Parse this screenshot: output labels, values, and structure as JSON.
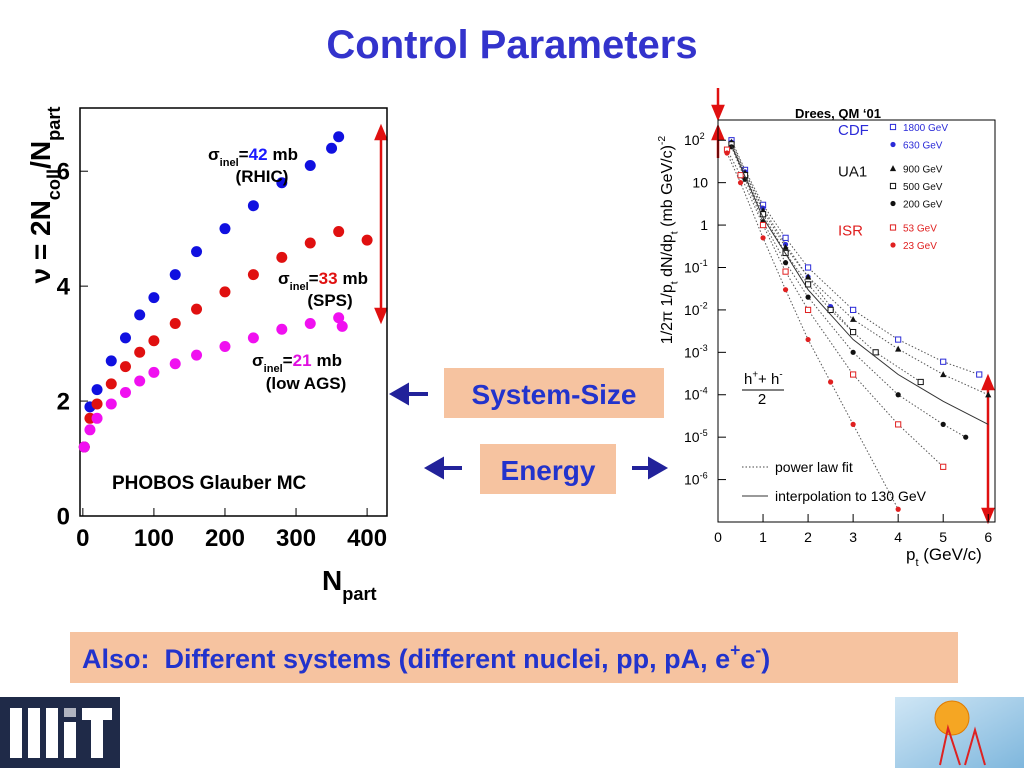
{
  "slide": {
    "title": "Control Parameters",
    "system_box": "System-Size",
    "energy_box": "Energy",
    "footer": [
      "Also:  Different systems (different nuclei, pp, pA, e",
      "+",
      "e",
      "-",
      ")"
    ]
  },
  "chart_data": [
    {
      "type": "scatter",
      "xlabel": [
        "N",
        "part"
      ],
      "ylabel": [
        "ν = 2N",
        "coll",
        "/N",
        "part"
      ],
      "xlim": [
        -4,
        428
      ],
      "ylim": [
        0,
        7.1
      ],
      "xticks": [
        0,
        100,
        200,
        300,
        400
      ],
      "yticks": [
        0,
        2,
        4,
        6
      ],
      "annotations": [
        {
          "symbol": "σ",
          "sub": "inel",
          "eq": "=",
          "value": 42,
          "unit": "mb",
          "note": "(RHIC)",
          "color": "#1a1aff"
        },
        {
          "symbol": "σ",
          "sub": "inel",
          "eq": "=",
          "value": 33,
          "unit": "mb",
          "note": "(SPS)",
          "color": "#e01010"
        },
        {
          "symbol": "σ",
          "sub": "inel",
          "eq": "=",
          "value": 21,
          "unit": "mb",
          "note": "(low AGS)",
          "color": "#e010e0"
        }
      ],
      "note": "PHOBOS Glauber MC",
      "series": [
        {
          "color": "#1010e0",
          "marker": "circle",
          "x": [
            2,
            10,
            20,
            40,
            60,
            80,
            100,
            130,
            160,
            200,
            240,
            280,
            320,
            350,
            360
          ],
          "values": [
            1.2,
            1.9,
            2.2,
            2.7,
            3.1,
            3.5,
            3.8,
            4.2,
            4.6,
            5.0,
            5.4,
            5.8,
            6.1,
            6.4,
            6.6
          ]
        },
        {
          "color": "#e01010",
          "marker": "circle",
          "x": [
            2,
            10,
            20,
            40,
            60,
            80,
            100,
            130,
            160,
            200,
            240,
            280,
            320,
            360,
            400
          ],
          "values": [
            1.2,
            1.7,
            1.95,
            2.3,
            2.6,
            2.85,
            3.05,
            3.35,
            3.6,
            3.9,
            4.2,
            4.5,
            4.75,
            4.95,
            4.8
          ]
        },
        {
          "color": "#f010f0",
          "marker": "circle",
          "x": [
            2,
            10,
            20,
            40,
            60,
            80,
            100,
            130,
            160,
            200,
            240,
            280,
            320,
            360,
            365
          ],
          "values": [
            1.2,
            1.5,
            1.7,
            1.95,
            2.15,
            2.35,
            2.5,
            2.65,
            2.8,
            2.95,
            3.1,
            3.25,
            3.35,
            3.45,
            3.3
          ]
        }
      ]
    },
    {
      "type": "scatter",
      "log_y": true,
      "xlabel": [
        "p",
        "t",
        " (GeV/c)"
      ],
      "ylabel": [
        "1/2π 1/p",
        "t",
        " dN/dp",
        "t",
        " (mb GeV/c)",
        "-2"
      ],
      "source": "Drees, QM ‘01",
      "xlim": [
        0,
        6.15
      ],
      "ylim": [
        1e-07,
        300
      ],
      "xticks": [
        0,
        1,
        2,
        3,
        4,
        5,
        6
      ],
      "yticks": [
        {
          "value": 100,
          "label": "10",
          "exp": "2"
        },
        10,
        1,
        {
          "value": 0.1,
          "label": "10",
          "exp": "-1"
        },
        {
          "value": 0.01,
          "label": "10",
          "exp": "-2"
        },
        {
          "value": 0.001,
          "label": "10",
          "exp": "-3"
        },
        {
          "value": 0.0001,
          "label": "10",
          "exp": "-4"
        },
        {
          "value": 1e-05,
          "label": "10",
          "exp": "-5"
        },
        {
          "value": 1e-06,
          "label": "10",
          "exp": "-6"
        }
      ],
      "legend": "upper right",
      "legend_groups": [
        {
          "label": "CDF",
          "color": "#2b2bd8"
        },
        {
          "label": "UA1",
          "color": "#111111"
        },
        {
          "label": "ISR",
          "color": "#e02020"
        }
      ],
      "fit_label": "power law fit",
      "formula": {
        "num": "h",
        "sup1": "+",
        "mid": "+ h",
        "sup2": "-",
        "den": "2"
      },
      "series": [
        {
          "name": "1800 GeV",
          "group": 0,
          "color": "#2b2bd8",
          "marker": "square-open",
          "line": "dotted",
          "x": [
            0.3,
            0.6,
            1,
            1.5,
            2,
            3,
            4,
            5,
            5.8
          ],
          "values": [
            100,
            20,
            3,
            0.5,
            0.1,
            0.01,
            0.002,
            0.0006,
            0.0003
          ]
        },
        {
          "name": "630 GeV",
          "group": 0,
          "color": "#2b2bd8",
          "marker": "circle",
          "line": "dotted",
          "x": [
            0.3,
            0.6,
            1,
            1.5,
            2,
            2.5,
            3
          ],
          "values": [
            90,
            18,
            2.5,
            0.35,
            0.06,
            0.012,
            0.003
          ]
        },
        {
          "name": "900 GeV",
          "group": 1,
          "color": "#111111",
          "marker": "triangle",
          "line": "dotted",
          "x": [
            0.3,
            0.6,
            1,
            1.5,
            2,
            3,
            4,
            5,
            6
          ],
          "values": [
            90,
            17,
            2.2,
            0.3,
            0.06,
            0.006,
            0.0012,
            0.0003,
            0.0001
          ]
        },
        {
          "name": "500 GeV",
          "group": 1,
          "color": "#111111",
          "marker": "square-open",
          "line": "dotted",
          "x": [
            0.3,
            0.6,
            1,
            1.5,
            2,
            2.5,
            3,
            3.5,
            4.5
          ],
          "values": [
            80,
            15,
            1.8,
            0.22,
            0.04,
            0.01,
            0.003,
            0.001,
            0.0002
          ]
        },
        {
          "name": "200 GeV",
          "group": 1,
          "color": "#111111",
          "marker": "circle",
          "line": "dotted",
          "x": [
            0.3,
            0.6,
            1,
            1.5,
            2,
            3,
            4,
            5,
            5.5
          ],
          "values": [
            70,
            12,
            1.2,
            0.13,
            0.02,
            0.001,
            0.0001,
            2e-05,
            1e-05
          ]
        },
        {
          "name": "53 GeV",
          "group": 2,
          "color": "#e02020",
          "marker": "square-open",
          "line": "dotted",
          "x": [
            0.2,
            0.5,
            1,
            1.5,
            2,
            3,
            4,
            5
          ],
          "values": [
            60,
            15,
            1,
            0.08,
            0.01,
            0.0003,
            2e-05,
            2e-06
          ]
        },
        {
          "name": "23 GeV",
          "group": 2,
          "color": "#e02020",
          "marker": "circle",
          "line": "dotted",
          "x": [
            0.2,
            0.5,
            1,
            1.5,
            2,
            2.5,
            3,
            4
          ],
          "values": [
            50,
            10,
            0.5,
            0.03,
            0.002,
            0.0002,
            2e-05,
            2e-07
          ]
        },
        {
          "name": "interpolation to 130 GeV",
          "color": "#333333",
          "line": "solid",
          "x": [
            0.3,
            1,
            2,
            3,
            4,
            5,
            6
          ],
          "values": [
            75,
            1.5,
            0.03,
            0.002,
            0.0003,
            7e-05,
            2e-05
          ]
        }
      ]
    }
  ]
}
